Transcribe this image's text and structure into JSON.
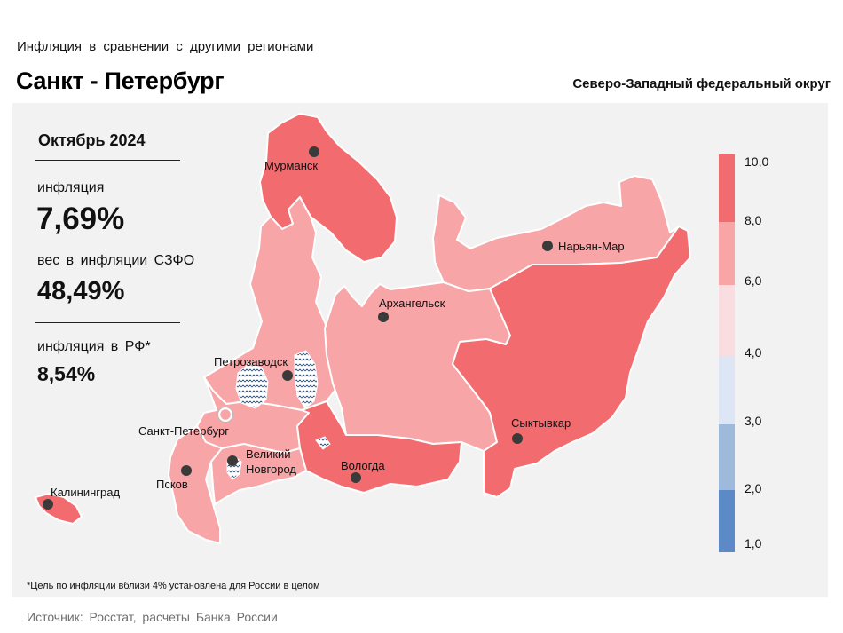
{
  "header": {
    "subtitle": "Инфляция в сравнении с другими регионами",
    "title": "Санкт - Петербург",
    "district": "Северо-Западный федеральный округ"
  },
  "stats": {
    "period": "Октябрь 2024",
    "inflation_label": "инфляция",
    "inflation_value": "7,69%",
    "weight_label": "вес в инфляции СЗФО",
    "weight_value": "48,49%",
    "rf_label": "инфляция в РФ*",
    "rf_value": "8,54%"
  },
  "cities": {
    "murmansk": "Мурманск",
    "naryan_mar": "Нарьян-Мар",
    "arkhangelsk": "Архангельск",
    "petrozavodsk": "Петрозаводск",
    "spb": "Санкт-Петербург",
    "syktyvkar": "Сыктывкар",
    "novgorod_1": "Великий",
    "novgorod_2": "Новгород",
    "vologda": "Вологда",
    "pskov": "Псков",
    "kaliningrad": "Калининград"
  },
  "legend": {
    "ticks": [
      "10,0",
      "8,0",
      "6,0",
      "4,0",
      "3,0",
      "2,0",
      "1,0"
    ],
    "colors": [
      "#f26b6e",
      "#f7a5a7",
      "#fadde0",
      "#dce6f5",
      "#9db9dc",
      "#5b8ac7"
    ]
  },
  "region_colors": {
    "high": "#f26b6e",
    "mid": "#f7a5a7"
  },
  "footnote": "*Цель по инфляции вблизи 4% установлена для России в целом",
  "source": "Источник: Росстат, расчеты Банка России"
}
